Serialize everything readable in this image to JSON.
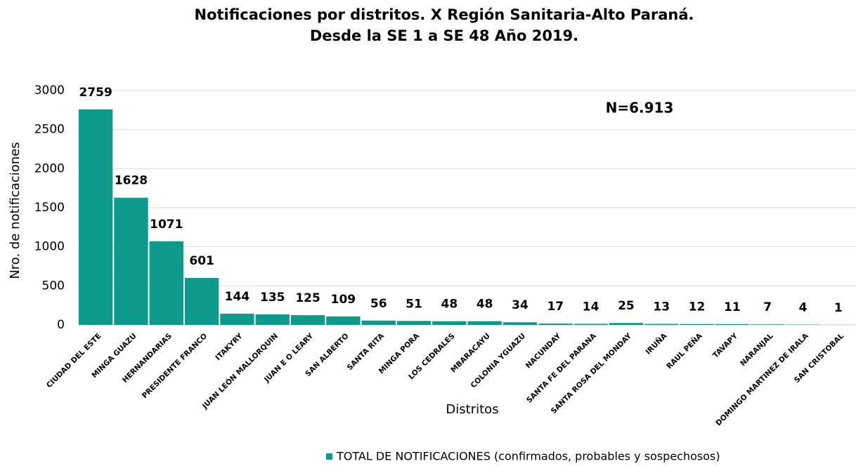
{
  "chart_data": {
    "type": "bar",
    "title": [
      "Notificaciones por distritos. X Región Sanitaria-Alto Paraná.",
      "Desde la SE 1 a SE 48 Año 2019."
    ],
    "annotation": "N=6.913",
    "x_label": "Distritos",
    "y_label": "Nro. de notificaciones",
    "categories": [
      "CIUDAD DEL ESTE",
      "MINGA GUAZU",
      "HERNANDARIAS",
      "PRESIDENTE FRANCO",
      "ITAKYRY",
      "JUAN LEÓN MALLORQUIN",
      "JUAN E O LEARY",
      "SAN ALBERTO",
      "SANTA RITA",
      "MINGA PORA",
      "LOS CEDRALES",
      "MBARACAYU",
      "COLONIA YGUAZU",
      "NACUNDAY",
      "SANTA FE DEL PARANA",
      "SANTA ROSA DEL MONDAY",
      "IRUÑA",
      "RAUL PEÑA",
      "TAVAPY",
      "NARANJAL",
      "DOMINGO MARTINEZ DE IRALA",
      "SAN CRISTOBAL"
    ],
    "series": [
      {
        "name": "TOTAL DE NOTIFICACIONES (confirmados, probables y sospechosos)",
        "color": "#0e9a8a",
        "values": [
          2759,
          1628,
          1071,
          601,
          144,
          135,
          125,
          109,
          56,
          51,
          48,
          48,
          34,
          17,
          14,
          25,
          13,
          12,
          11,
          7,
          4,
          1
        ]
      }
    ],
    "ylim": [
      0,
      3000
    ],
    "yticks": [
      0,
      500,
      1000,
      1500,
      2000,
      2500,
      3000
    ],
    "grid": true,
    "legend": "bottom"
  }
}
